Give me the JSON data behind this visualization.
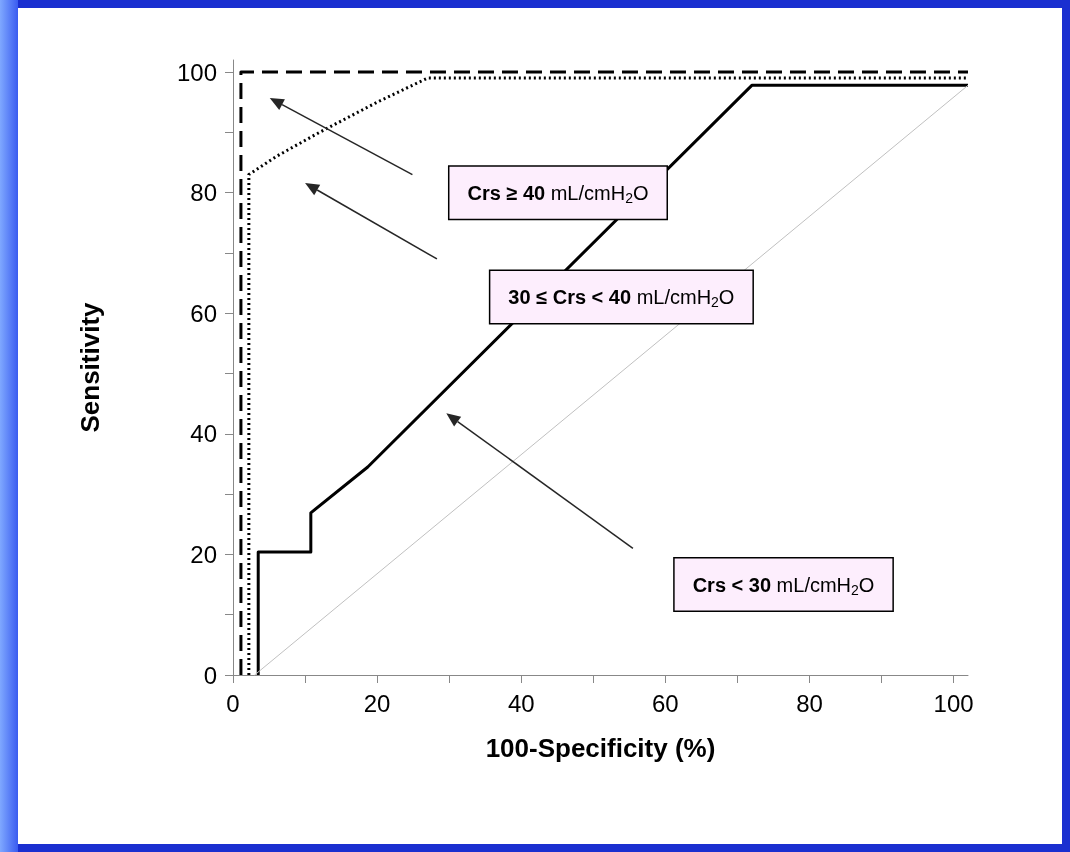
{
  "chart_data": {
    "type": "line",
    "xlabel": "100-Specificity (%)",
    "ylabel": "Sensitivity",
    "xlim": [
      0,
      102
    ],
    "ylim": [
      0,
      102
    ],
    "xticks": [
      0,
      {
        "value": 10,
        "label": null
      },
      20,
      {
        "value": 30,
        "label": null
      },
      40,
      {
        "value": 50,
        "label": null
      },
      60,
      {
        "value": 70,
        "label": null
      },
      80,
      {
        "value": 90,
        "label": null
      },
      100
    ],
    "yticks": [
      0,
      {
        "value": 10,
        "label": null
      },
      20,
      {
        "value": 30,
        "label": null
      },
      40,
      {
        "value": 50,
        "label": null
      },
      60,
      {
        "value": 70,
        "label": null
      },
      80,
      {
        "value": 90,
        "label": null
      },
      100
    ],
    "grid": false,
    "marker": "none",
    "series": [
      {
        "color": "#000000",
        "line_style": "dotted",
        "x": [
          2.2,
          2.2,
          6,
          12,
          20,
          27,
          102
        ],
        "values": [
          0,
          83,
          86,
          90,
          95,
          99,
          99
        ]
      },
      {
        "color": "#000000",
        "line_style": "solid",
        "x": [
          3.5,
          3.5,
          10.8,
          10.8,
          18.7,
          72,
          102
        ],
        "values": [
          0,
          20.4,
          20.4,
          26.9,
          34.5,
          97.8,
          97.8
        ]
      },
      {
        "color": "#c0c0c0",
        "line_style": "solid",
        "x": [
          3,
          102
        ],
        "values": [
          0,
          97.8
        ]
      },
      {
        "color": "#000000",
        "line_style": "dashed",
        "x": [
          1.1,
          1.1,
          102
        ],
        "values": [
          0,
          100,
          100
        ]
      }
    ],
    "annotations": [
      "Crs ≥ 40 mL/cmH$_{2}$O",
      "30 ≤ Crs < 40 mL/cmH$_{2}$O",
      "Crs < 30 mL/cmH$_{2}$O"
    ]
  }
}
